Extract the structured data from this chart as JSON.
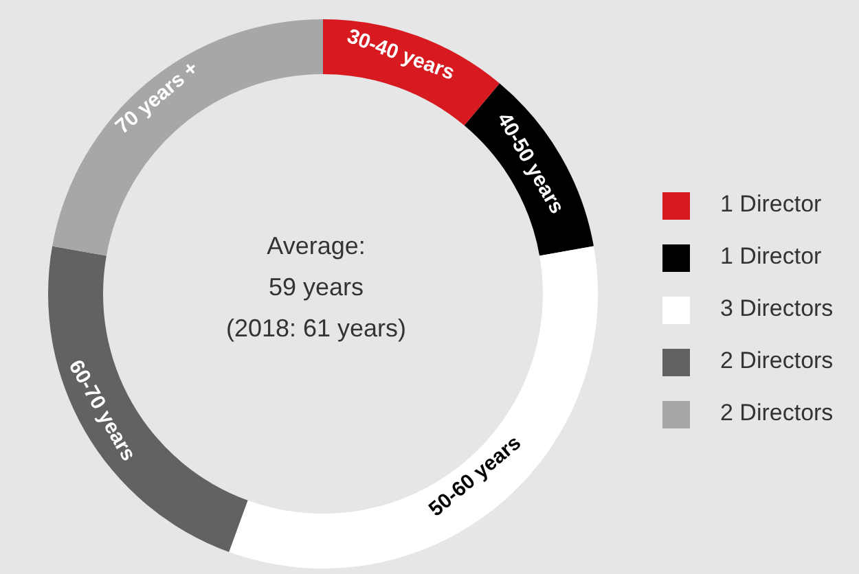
{
  "chart_data": {
    "type": "donut",
    "categories": [
      "1 Director",
      "1 Director",
      "3 Directors",
      "2 Directors",
      "2 Directors"
    ],
    "values": [
      1,
      1,
      3,
      2,
      2
    ],
    "colors": [
      "#d71920",
      "#000000",
      "#ffffff",
      "#626262",
      "#a7a7a9"
    ],
    "annotations": [
      "Average:",
      "59 years",
      "(2018: 61 years)",
      {
        "text": "30-40 years",
        "x": "1 Director"
      },
      {
        "text": "40-50 years",
        "x": "1 Director"
      },
      {
        "text": "50-60 years",
        "x": "3 Directors"
      },
      {
        "text": "60-70 years",
        "x": "2 Directors"
      },
      {
        "text": "70 years +",
        "x": "2 Directors"
      }
    ],
    "legend": "right"
  }
}
